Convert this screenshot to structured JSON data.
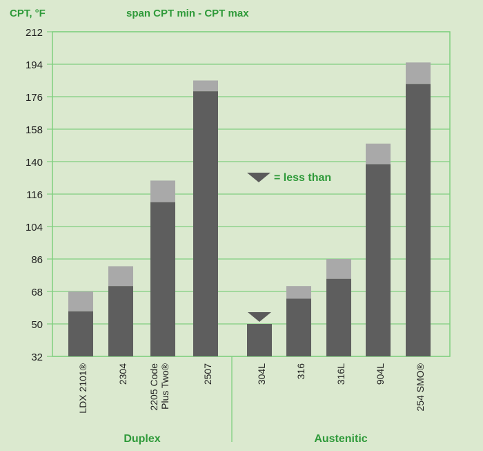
{
  "chart_data": {
    "type": "bar",
    "stacked": true,
    "ylabel": "CPT, °F",
    "legend_title": "span CPT min - CPT max",
    "annotation": "= less than",
    "y_ticks": [
      "212",
      "194",
      "176",
      "158",
      "140",
      "116",
      "104",
      "86",
      "68",
      "50",
      "32"
    ],
    "categories": [
      "LDX 2101®",
      "2304",
      "2205 Code Plus Two®",
      "2507",
      "304L",
      "316",
      "316L",
      "904L",
      "254 SMO®"
    ],
    "groups": [
      {
        "name": "Duplex",
        "categories": [
          "LDX 2101®",
          "2304",
          "2205 Code Plus Two®",
          "2507"
        ]
      },
      {
        "name": "Austenitic",
        "categories": [
          "304L",
          "316",
          "316L",
          "904L",
          "254 SMO®"
        ]
      }
    ],
    "series": [
      {
        "name": "CPT min",
        "values": [
          57,
          71,
          113,
          179,
          50,
          64,
          75,
          138,
          183
        ],
        "color": "#5e5e5e"
      },
      {
        "name": "CPT max",
        "values": [
          68,
          82,
          126,
          185,
          50,
          71,
          86,
          150,
          195
        ],
        "color": "#a9a9a9"
      }
    ],
    "less_than_marker": [
      "304L"
    ],
    "grid": true,
    "colors": {
      "background": "#dbe9cf",
      "grid": "#7fcf7f",
      "accent": "#2f9a3a"
    }
  }
}
